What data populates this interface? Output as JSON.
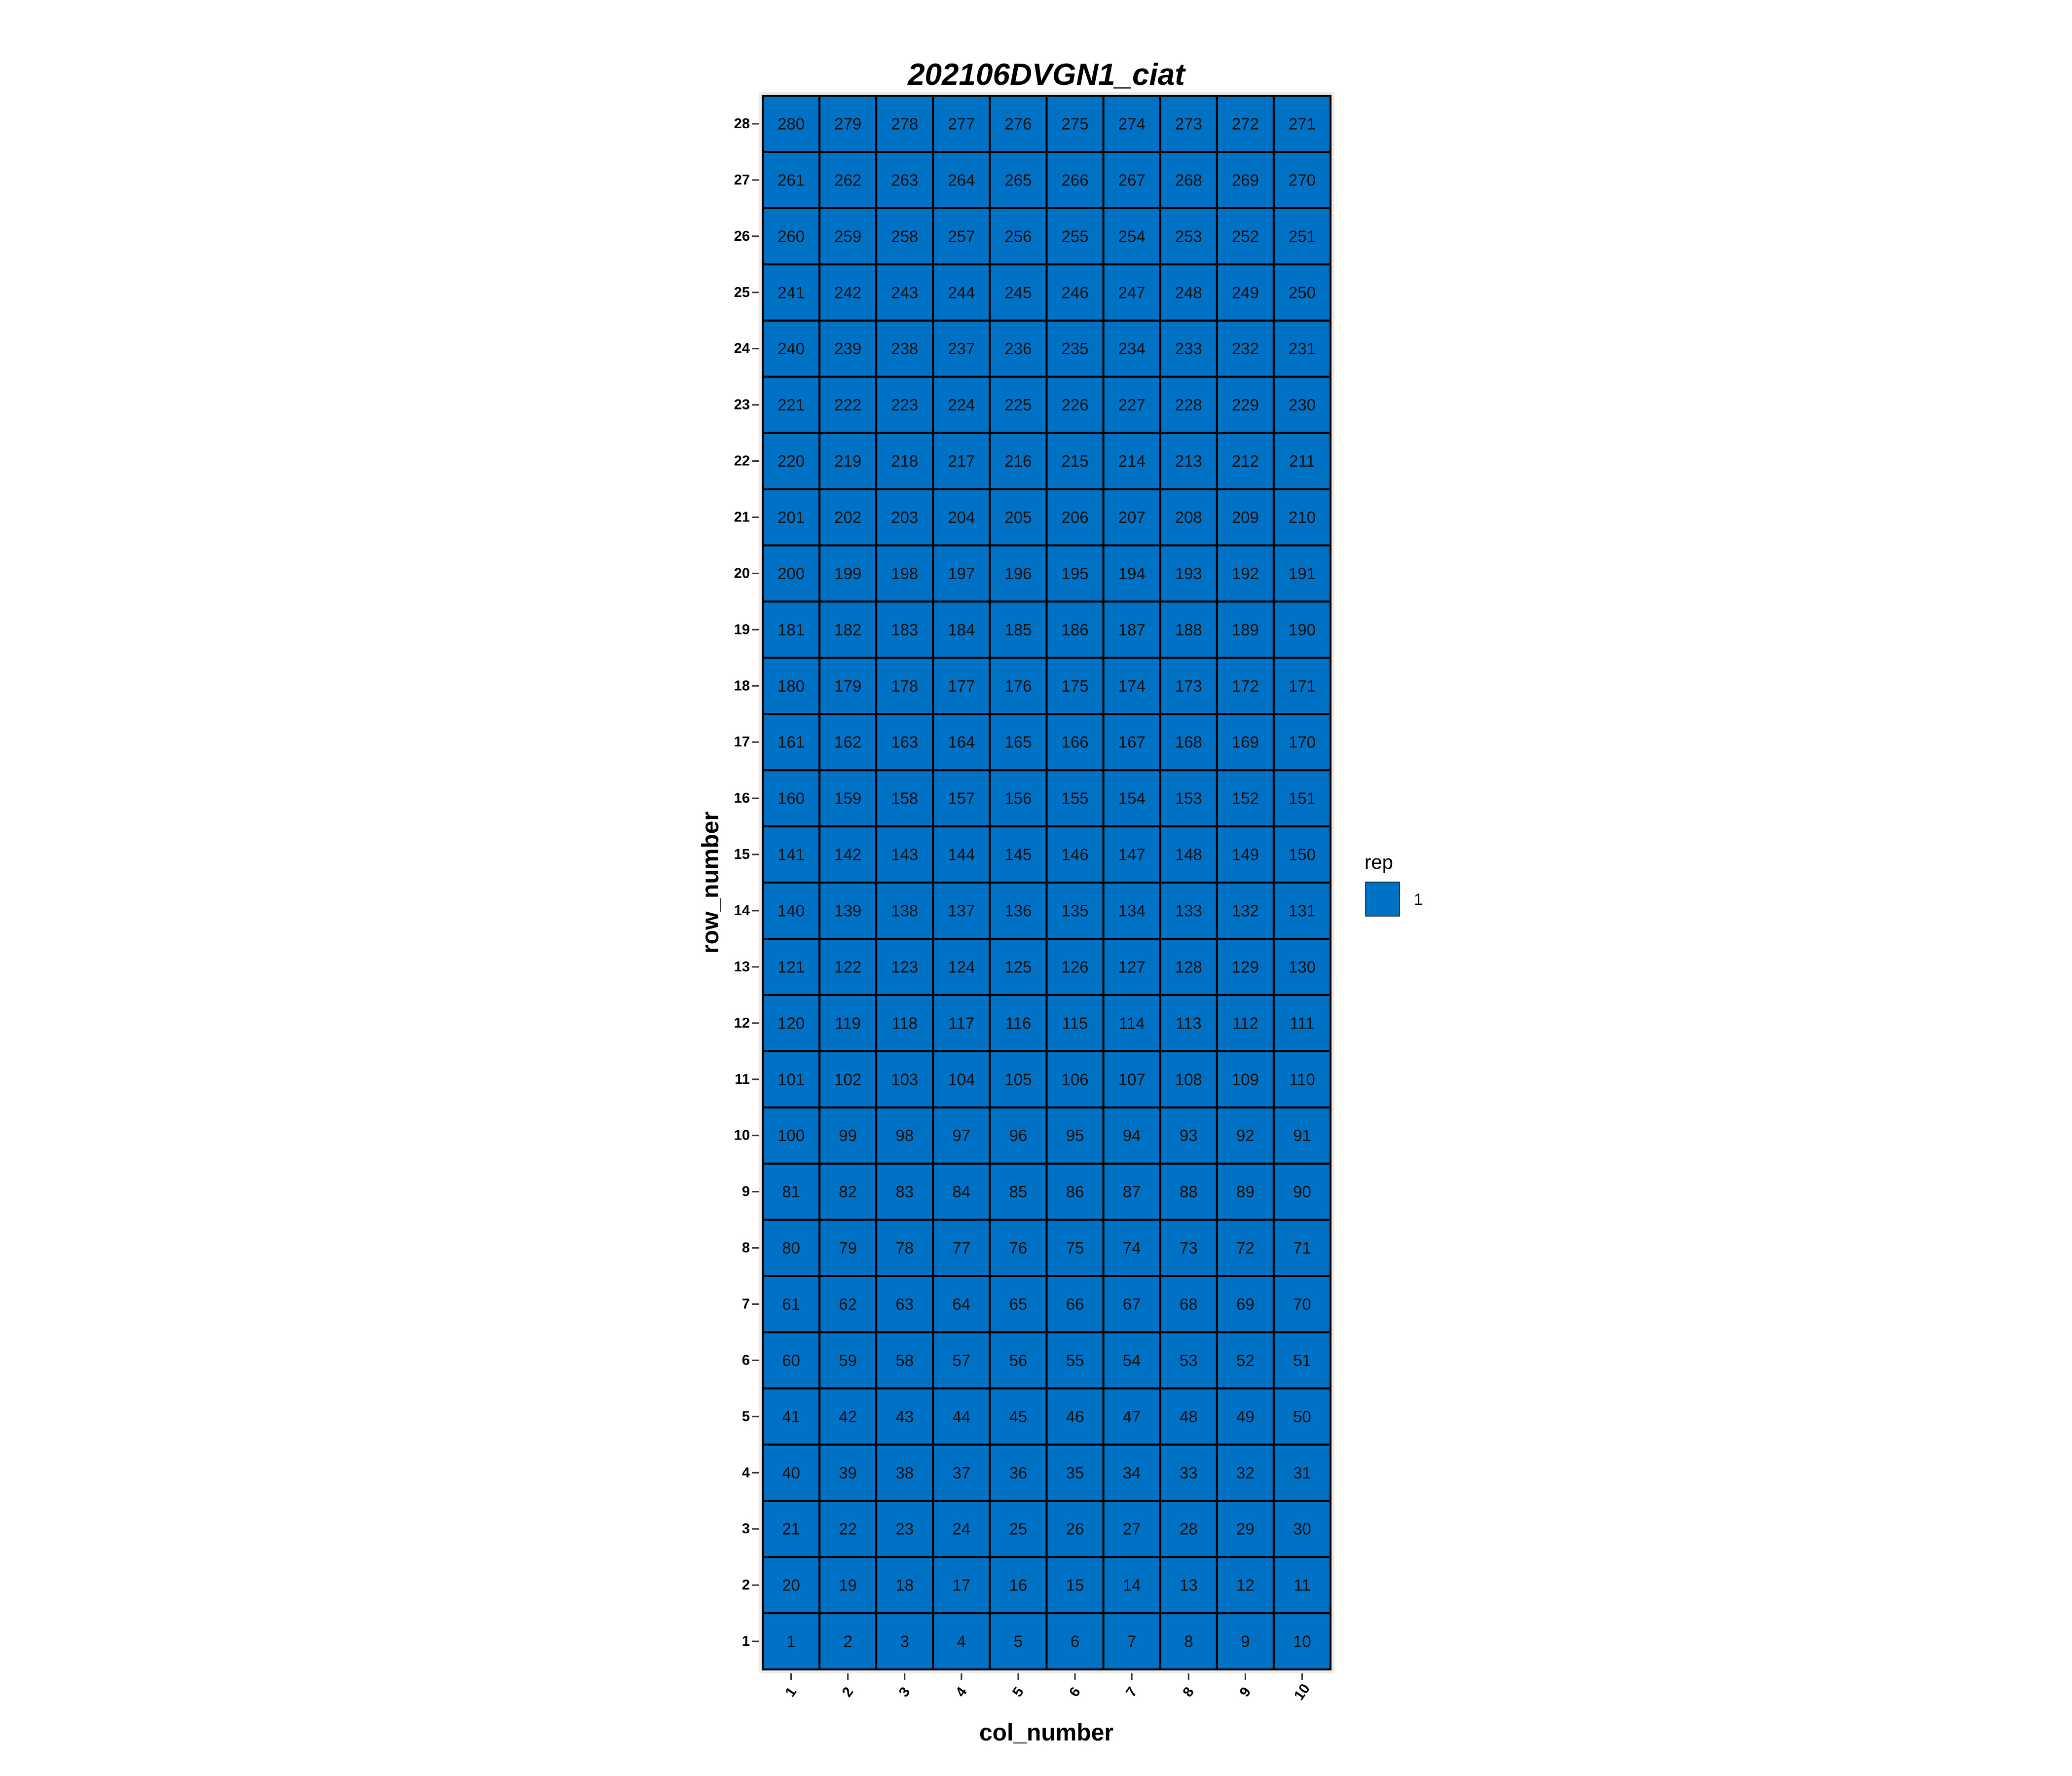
{
  "chart_data": {
    "type": "heatmap",
    "title": "202106DVGN1_ciat",
    "xlabel": "col_number",
    "ylabel": "row_number",
    "x_ticks": [
      "1",
      "2",
      "3",
      "4",
      "5",
      "6",
      "7",
      "8",
      "9",
      "10"
    ],
    "y_ticks": [
      "1",
      "2",
      "3",
      "4",
      "5",
      "6",
      "7",
      "8",
      "9",
      "10",
      "11",
      "12",
      "13",
      "14",
      "15",
      "16",
      "17",
      "18",
      "19",
      "20",
      "21",
      "22",
      "23",
      "24",
      "25",
      "26",
      "27",
      "28"
    ],
    "n_cols": 10,
    "n_rows": 28,
    "cell_fill": "#0072C6",
    "cell_border": "#000000",
    "panel_background": "#EBEBEB",
    "grid": false,
    "legend": {
      "title": "rep",
      "position": "right",
      "entries": [
        {
          "label": "1",
          "color": "#0072C6"
        }
      ]
    },
    "cell_values": [
      [
        1,
        2,
        3,
        4,
        5,
        6,
        7,
        8,
        9,
        10
      ],
      [
        20,
        19,
        18,
        17,
        16,
        15,
        14,
        13,
        12,
        11
      ],
      [
        21,
        22,
        23,
        24,
        25,
        26,
        27,
        28,
        29,
        30
      ],
      [
        40,
        39,
        38,
        37,
        36,
        35,
        34,
        33,
        32,
        31
      ],
      [
        41,
        42,
        43,
        44,
        45,
        46,
        47,
        48,
        49,
        50
      ],
      [
        60,
        59,
        58,
        57,
        56,
        55,
        54,
        53,
        52,
        51
      ],
      [
        61,
        62,
        63,
        64,
        65,
        66,
        67,
        68,
        69,
        70
      ],
      [
        80,
        79,
        78,
        77,
        76,
        75,
        74,
        73,
        72,
        71
      ],
      [
        81,
        82,
        83,
        84,
        85,
        86,
        87,
        88,
        89,
        90
      ],
      [
        100,
        99,
        98,
        97,
        96,
        95,
        94,
        93,
        92,
        91
      ],
      [
        101,
        102,
        103,
        104,
        105,
        106,
        107,
        108,
        109,
        110
      ],
      [
        120,
        119,
        118,
        117,
        116,
        115,
        114,
        113,
        112,
        111
      ],
      [
        121,
        122,
        123,
        124,
        125,
        126,
        127,
        128,
        129,
        130
      ],
      [
        140,
        139,
        138,
        137,
        136,
        135,
        134,
        133,
        132,
        131
      ],
      [
        141,
        142,
        143,
        144,
        145,
        146,
        147,
        148,
        149,
        150
      ],
      [
        160,
        159,
        158,
        157,
        156,
        155,
        154,
        153,
        152,
        151
      ],
      [
        161,
        162,
        163,
        164,
        165,
        166,
        167,
        168,
        169,
        170
      ],
      [
        180,
        179,
        178,
        177,
        176,
        175,
        174,
        173,
        172,
        171
      ],
      [
        181,
        182,
        183,
        184,
        185,
        186,
        187,
        188,
        189,
        190
      ],
      [
        200,
        199,
        198,
        197,
        196,
        195,
        194,
        193,
        192,
        191
      ],
      [
        201,
        202,
        203,
        204,
        205,
        206,
        207,
        208,
        209,
        210
      ],
      [
        220,
        219,
        218,
        217,
        216,
        215,
        214,
        213,
        212,
        211
      ],
      [
        221,
        222,
        223,
        224,
        225,
        226,
        227,
        228,
        229,
        230
      ],
      [
        240,
        239,
        238,
        237,
        236,
        235,
        234,
        233,
        232,
        231
      ],
      [
        241,
        242,
        243,
        244,
        245,
        246,
        247,
        248,
        249,
        250
      ],
      [
        260,
        259,
        258,
        257,
        256,
        255,
        254,
        253,
        252,
        251
      ],
      [
        261,
        262,
        263,
        264,
        265,
        266,
        267,
        268,
        269,
        270
      ],
      [
        280,
        279,
        278,
        277,
        276,
        275,
        274,
        273,
        272,
        271
      ]
    ]
  }
}
